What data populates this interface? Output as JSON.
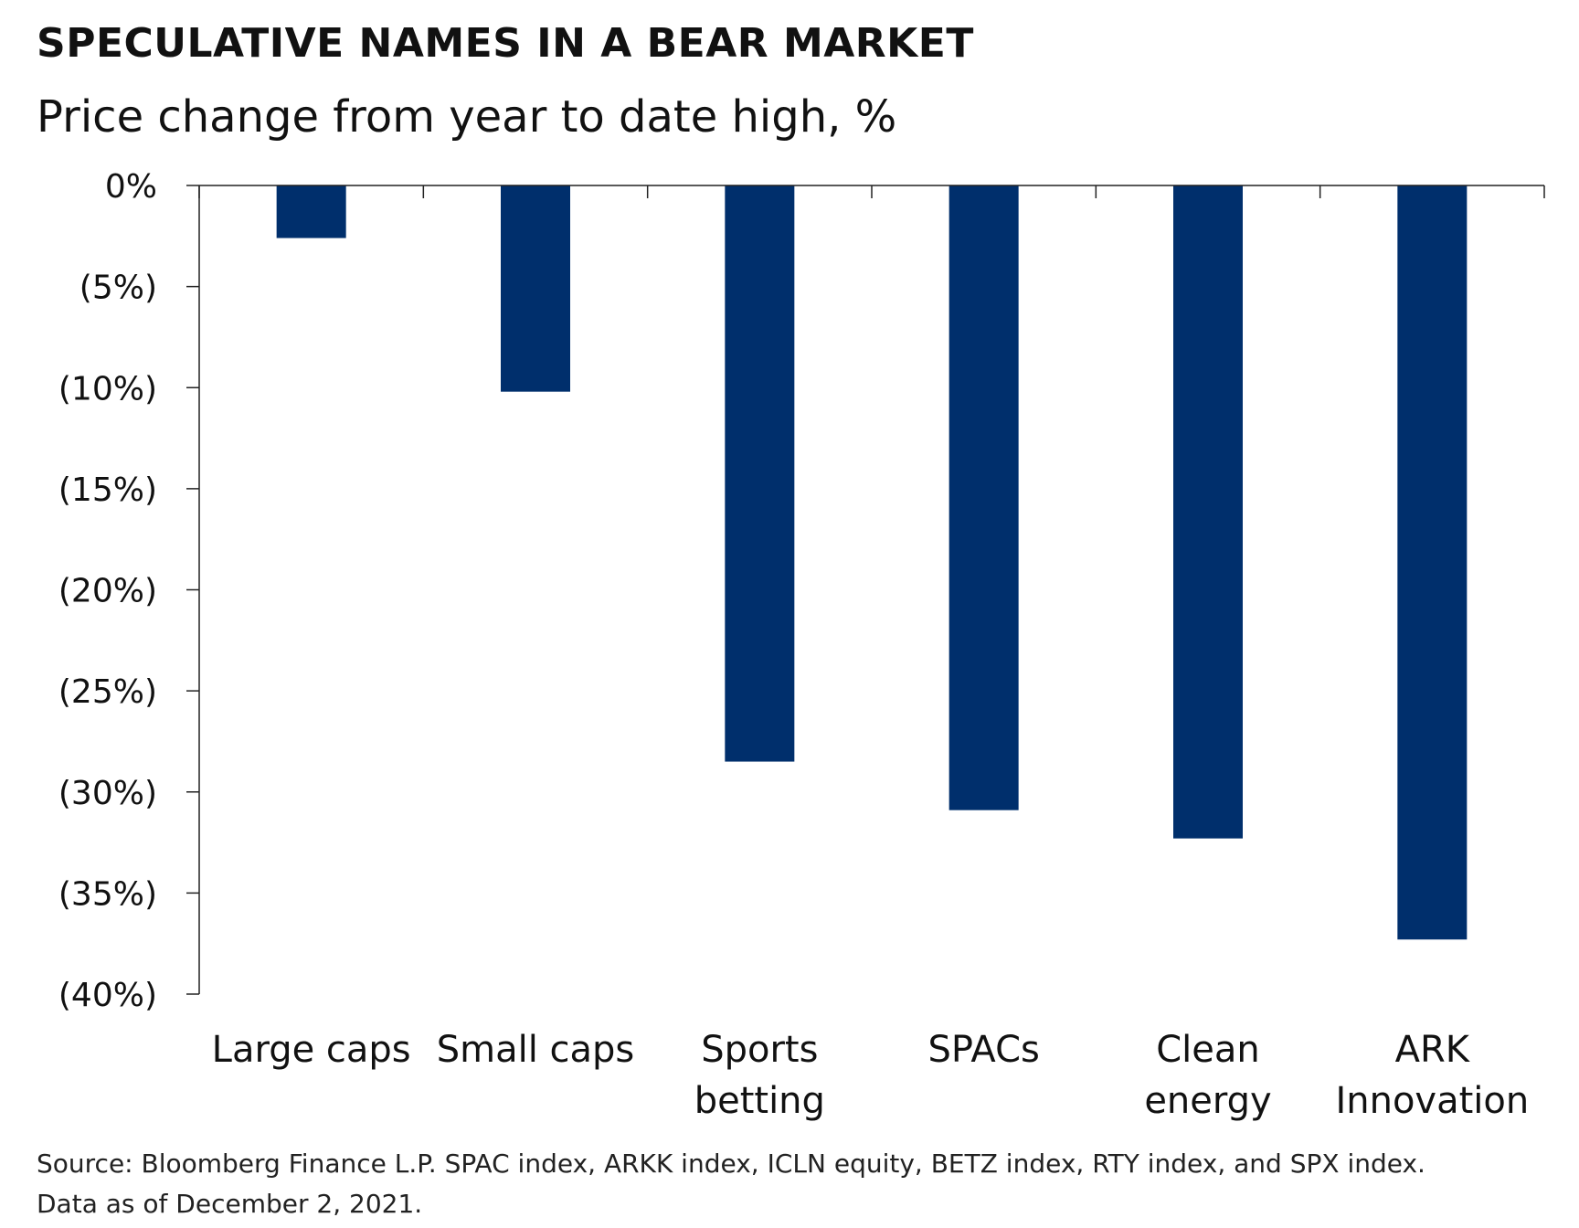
{
  "header": {
    "title": "SPECULATIVE NAMES IN A BEAR MARKET",
    "subtitle": "Price change from year to date high, %"
  },
  "footer": {
    "source_line1": "Source: Bloomberg Finance L.P. SPAC index, ARKK index, ICLN equity, BETZ index, RTY index, and SPX index.",
    "source_line2": "Data as of December 2, 2021."
  },
  "colors": {
    "bar": "#002F6C",
    "axis": "#222222"
  },
  "chart_data": {
    "type": "bar",
    "title": "SPECULATIVE NAMES IN A BEAR MARKET",
    "subtitle": "Price change from year to date high, %",
    "xlabel": "",
    "ylabel": "",
    "categories": [
      [
        "Large caps"
      ],
      [
        "Small caps"
      ],
      [
        "Sports",
        "betting"
      ],
      [
        "SPACs"
      ],
      [
        "Clean",
        "energy"
      ],
      [
        "ARK",
        "Innovation"
      ]
    ],
    "values": [
      -2.6,
      -10.2,
      -28.5,
      -30.9,
      -32.3,
      -37.3
    ],
    "ylim": [
      -40,
      0
    ],
    "yticks": [
      0,
      -5,
      -10,
      -15,
      -20,
      -25,
      -30,
      -35,
      -40
    ],
    "ytick_labels": [
      "0%",
      "(5%)",
      "(10%)",
      "(15%)",
      "(20%)",
      "(25%)",
      "(30%)",
      "(35%)",
      "(40%)"
    ],
    "grid": false,
    "legend": "none"
  }
}
